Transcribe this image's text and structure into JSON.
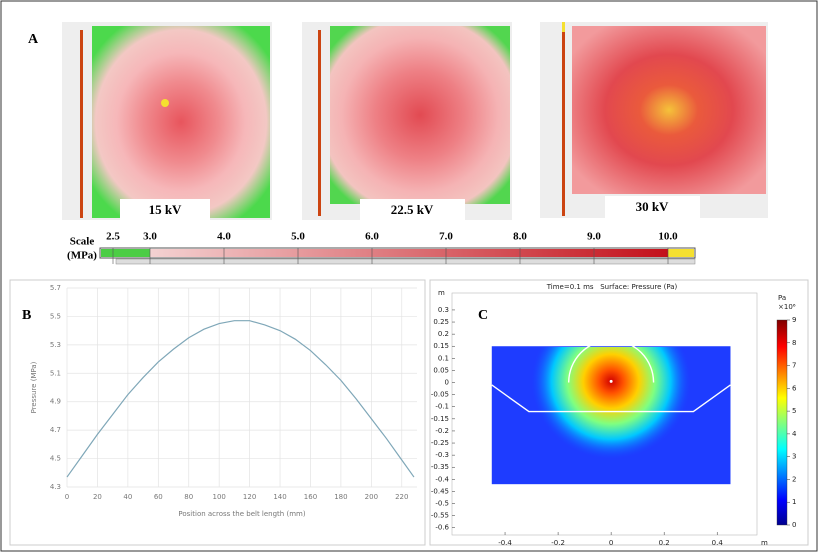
{
  "panel_a": {
    "label": "A",
    "images": [
      "15 kV",
      "22.5 kV",
      "30 kV"
    ],
    "scale": {
      "title": [
        "Scale",
        "(MPa)"
      ],
      "ticks": [
        2.5,
        {
          "value": 3,
          "label": "3.0"
        },
        {
          "value": 4,
          "label": "4.0"
        },
        {
          "value": 5,
          "label": "5.0"
        },
        {
          "value": 6,
          "label": "6.0"
        },
        {
          "value": 7,
          "label": "7.0"
        },
        {
          "value": 8,
          "label": "8.0"
        },
        {
          "value": 9,
          "label": "9.0"
        },
        {
          "value": 10,
          "label": "10.0"
        }
      ]
    }
  },
  "chart_data": [
    {
      "type": "line",
      "label": "B",
      "xlabel": "Position across the belt length (mm)",
      "ylabel": "Pressure (MPa)",
      "x": [
        0,
        10,
        20,
        30,
        40,
        50,
        60,
        70,
        80,
        90,
        100,
        110,
        120,
        130,
        140,
        150,
        160,
        170,
        180,
        190,
        200,
        210,
        220,
        228
      ],
      "values": [
        4.37,
        4.52,
        4.67,
        4.81,
        4.95,
        5.07,
        5.18,
        5.27,
        5.35,
        5.41,
        5.45,
        5.47,
        5.47,
        5.44,
        5.4,
        5.34,
        5.26,
        5.16,
        5.05,
        4.92,
        4.78,
        4.64,
        4.49,
        4.37
      ],
      "color": "#7fa7b8",
      "grid": true,
      "xlim": [
        0,
        230
      ],
      "xticks": [
        0,
        20,
        40,
        60,
        80,
        100,
        120,
        140,
        160,
        180,
        200,
        220
      ],
      "ylim": [
        4.3,
        5.7
      ],
      "yticks": [
        4.3,
        4.5,
        4.7,
        4.9,
        5.1,
        5.3,
        5.5,
        5.7
      ]
    },
    {
      "type": "surface",
      "label": "C",
      "title": "Time=0.1 ms   Surface: Pressure (Pa)",
      "xlabel": "m",
      "ylabel": "m",
      "xlim": [
        -0.6,
        0.55
      ],
      "xticks": [
        -0.4,
        -0.2,
        0,
        0.2,
        0.4
      ],
      "ylim": [
        -0.63,
        0.37
      ],
      "yticks": [
        0.3,
        0.25,
        0.2,
        0.15,
        0.1,
        0.05,
        0,
        -0.05,
        -0.1,
        -0.15,
        -0.2,
        -0.25,
        -0.3,
        -0.35,
        -0.4,
        -0.45,
        -0.5,
        -0.55,
        -0.6
      ],
      "colorbar": {
        "label": "Pa",
        "multiplier": "×10⁶",
        "lim": [
          0,
          9
        ],
        "ticks": [
          0,
          1,
          2,
          3,
          4,
          5,
          6,
          7,
          8,
          9
        ]
      }
    }
  ]
}
